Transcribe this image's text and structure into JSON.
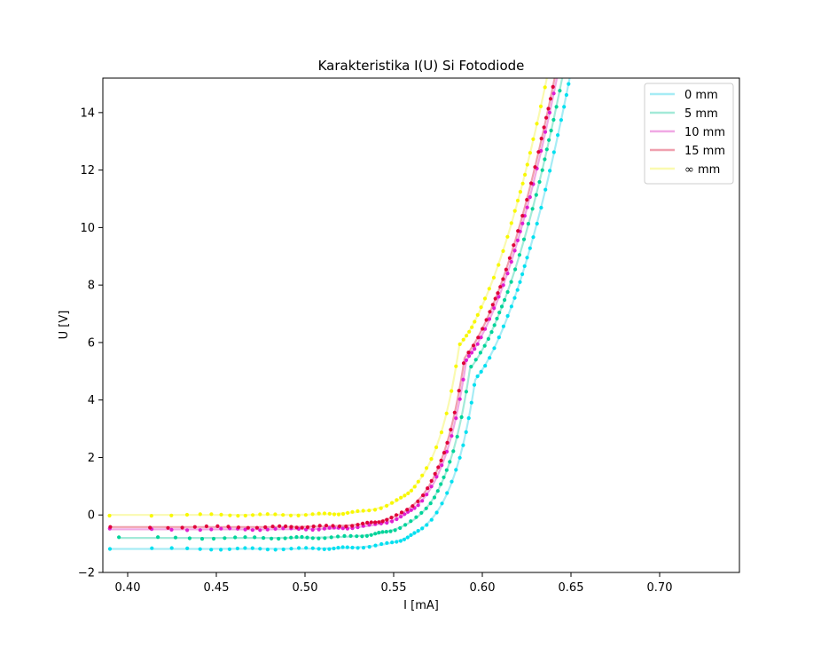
{
  "chart_data": {
    "type": "scatter",
    "title": "Karakteristika I(U) Si Fotodiode",
    "xlabel": "I [mA]",
    "ylabel": "U [V]",
    "xlim": [
      0.386,
      0.745
    ],
    "ylim": [
      -2,
      15.2
    ],
    "xticks": [
      0.4,
      0.45,
      0.5,
      0.55,
      0.6,
      0.65,
      0.7
    ],
    "xtick_labels": [
      "0.40",
      "0.45",
      "0.50",
      "0.55",
      "0.60",
      "0.65",
      "0.70"
    ],
    "yticks": [
      -2,
      0,
      2,
      4,
      6,
      8,
      10,
      12,
      14
    ],
    "ytick_labels": [
      "−2",
      "0",
      "2",
      "4",
      "6",
      "8",
      "10",
      "12",
      "14"
    ],
    "grid": false,
    "legend_position": "top-right",
    "series": [
      {
        "name": "0 mm",
        "point_color": "#00e0f0",
        "line_color": "#a6ecf5",
        "u0": -1.18,
        "shift": 0.006,
        "xmin": 0.39
      },
      {
        "name": "5 mm",
        "point_color": "#00d49a",
        "line_color": "#a3ead8",
        "u0": -0.8,
        "shift": 0.003,
        "xmin": 0.395
      },
      {
        "name": "10 mm",
        "point_color": "#e020d0",
        "line_color": "#f0a8e4",
        "u0": -0.5,
        "shift": 0.001,
        "xmin": 0.39
      },
      {
        "name": "15 mm",
        "point_color": "#e0003a",
        "line_color": "#f0a0ae",
        "u0": -0.42,
        "shift": 0.0,
        "xmin": 0.39
      },
      {
        "name": "∞ mm",
        "point_color": "#f8f800",
        "line_color": "#fafab0",
        "u0": 0.0,
        "shift": -0.003,
        "xmin": 0.39
      }
    ]
  }
}
